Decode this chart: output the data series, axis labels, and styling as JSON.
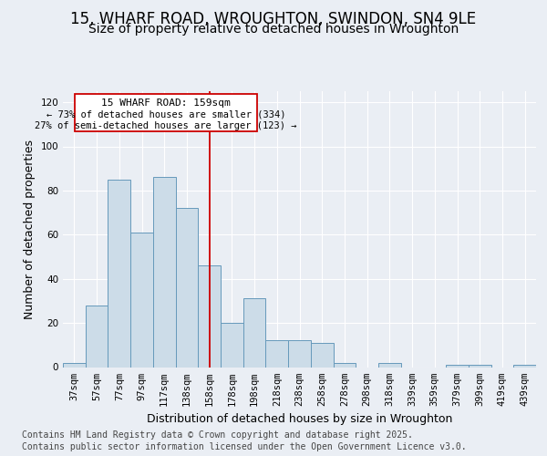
{
  "title": "15, WHARF ROAD, WROUGHTON, SWINDON, SN4 9LE",
  "subtitle": "Size of property relative to detached houses in Wroughton",
  "xlabel": "Distribution of detached houses by size in Wroughton",
  "ylabel": "Number of detached properties",
  "categories": [
    "37sqm",
    "57sqm",
    "77sqm",
    "97sqm",
    "117sqm",
    "138sqm",
    "158sqm",
    "178sqm",
    "198sqm",
    "218sqm",
    "238sqm",
    "258sqm",
    "278sqm",
    "298sqm",
    "318sqm",
    "339sqm",
    "359sqm",
    "379sqm",
    "399sqm",
    "419sqm",
    "439sqm"
  ],
  "values": [
    2,
    28,
    85,
    61,
    86,
    72,
    46,
    20,
    31,
    12,
    12,
    11,
    2,
    0,
    2,
    0,
    0,
    1,
    1,
    0,
    1
  ],
  "bar_color": "#ccdce8",
  "bar_edge_color": "#6699bb",
  "vline_index": 6,
  "vline_color": "#cc0000",
  "annotation_title": "15 WHARF ROAD: 159sqm",
  "annotation_line1": "← 73% of detached houses are smaller (334)",
  "annotation_line2": "27% of semi-detached houses are larger (123) →",
  "annotation_box_color": "#cc0000",
  "ylim": [
    0,
    125
  ],
  "yticks": [
    0,
    20,
    40,
    60,
    80,
    100,
    120
  ],
  "background_color": "#eaeef4",
  "plot_bg_color": "#eaeef4",
  "footer_line1": "Contains HM Land Registry data © Crown copyright and database right 2025.",
  "footer_line2": "Contains public sector information licensed under the Open Government Licence v3.0.",
  "title_fontsize": 12,
  "subtitle_fontsize": 10,
  "label_fontsize": 9,
  "tick_fontsize": 7.5,
  "footer_fontsize": 7,
  "annot_fontsize": 8
}
